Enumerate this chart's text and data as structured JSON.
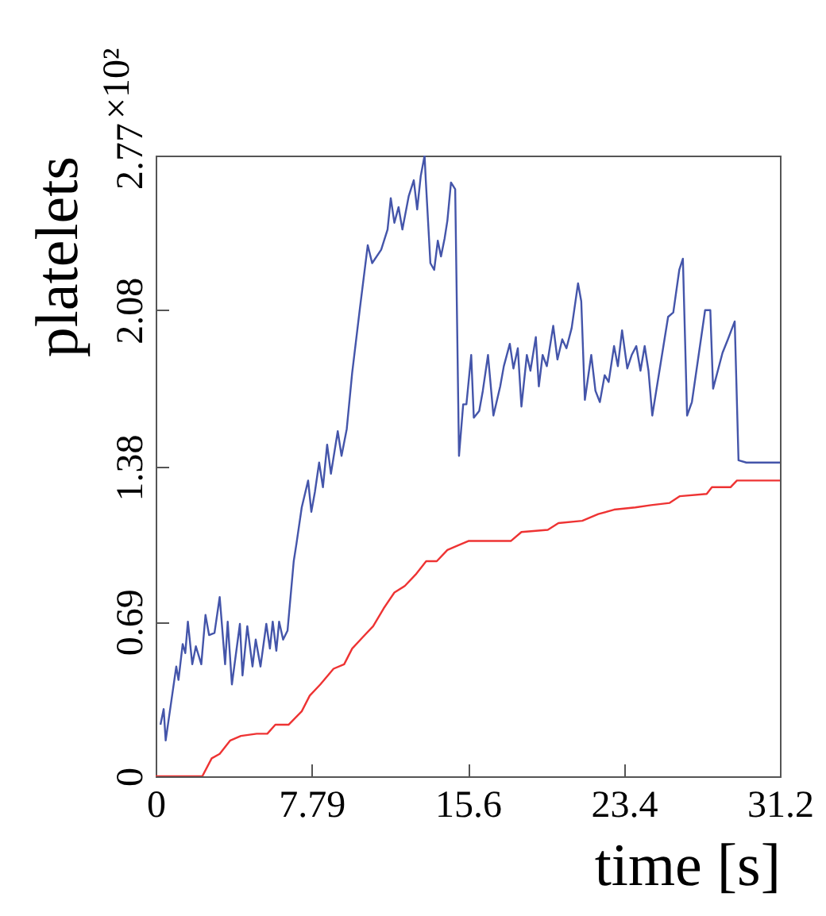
{
  "chart_data": {
    "type": "line",
    "xlabel": "time [s]",
    "ylabel": "platelets",
    "xlim": [
      0,
      31.2
    ],
    "xticks": [
      0,
      7.79,
      15.6,
      23.4,
      31.2
    ],
    "ylim": [
      0,
      2.77
    ],
    "yticks": [
      0,
      0.69,
      1.38,
      2.08,
      2.77
    ],
    "annotations": [
      "×10²"
    ],
    "grid": false,
    "series": [
      {
        "color": "#4455aa",
        "x": [
          0.24,
          0.4,
          0.5,
          1.03,
          1.14,
          1.35,
          1.48,
          1.61,
          1.83,
          2.01,
          2.28,
          2.49,
          2.67,
          2.94,
          3.2,
          3.47,
          3.6,
          3.81,
          4.21,
          4.34,
          4.58,
          4.84,
          5.0,
          5.24,
          5.53,
          5.71,
          5.85,
          6.03,
          6.17,
          6.37,
          6.59,
          6.9,
          7.04,
          7.3,
          7.62,
          7.78,
          7.96,
          8.17,
          8.36,
          8.57,
          8.76,
          9.1,
          9.29,
          9.55,
          9.82,
          10.21,
          10.6,
          10.82,
          11.27,
          11.59,
          11.75,
          11.93,
          12.14,
          12.33,
          12.65,
          12.9,
          13.07,
          13.25,
          13.44,
          13.5,
          13.73,
          13.92,
          14.1,
          14.26,
          14.44,
          14.58,
          14.76,
          14.97,
          15.16,
          15.37,
          15.53,
          15.77,
          15.9,
          16.17,
          16.35,
          16.61,
          16.88,
          17.22,
          17.4,
          17.7,
          17.88,
          18.1,
          18.28,
          18.55,
          18.73,
          19.0,
          19.15,
          19.34,
          19.55,
          19.87,
          20.08,
          20.32,
          20.53,
          20.79,
          21.11,
          21.27,
          21.45,
          21.77,
          21.98,
          22.2,
          22.44,
          22.64,
          22.91,
          23.1,
          23.31,
          23.57,
          23.79,
          24.02,
          24.23,
          24.44,
          24.63,
          24.82,
          25.61,
          25.87,
          26.17,
          26.35,
          26.56,
          26.8,
          27.46,
          27.72,
          27.86,
          28.33,
          28.6,
          28.94,
          29.13,
          29.52,
          30.0,
          31.2
        ],
        "values": [
          0.23,
          0.3,
          0.16,
          0.49,
          0.43,
          0.59,
          0.55,
          0.69,
          0.5,
          0.58,
          0.5,
          0.72,
          0.63,
          0.64,
          0.8,
          0.5,
          0.69,
          0.41,
          0.68,
          0.45,
          0.67,
          0.49,
          0.61,
          0.49,
          0.68,
          0.57,
          0.69,
          0.56,
          0.69,
          0.61,
          0.65,
          0.96,
          1.04,
          1.2,
          1.32,
          1.18,
          1.27,
          1.4,
          1.29,
          1.48,
          1.35,
          1.54,
          1.43,
          1.55,
          1.8,
          2.09,
          2.37,
          2.29,
          2.35,
          2.44,
          2.58,
          2.47,
          2.54,
          2.44,
          2.59,
          2.66,
          2.53,
          2.68,
          2.77,
          2.66,
          2.29,
          2.26,
          2.39,
          2.32,
          2.4,
          2.48,
          2.65,
          2.62,
          1.43,
          1.66,
          1.66,
          1.88,
          1.6,
          1.63,
          1.72,
          1.88,
          1.61,
          1.74,
          1.83,
          1.93,
          1.82,
          1.91,
          1.65,
          1.88,
          1.81,
          1.96,
          1.74,
          1.88,
          1.83,
          2.01,
          1.86,
          1.95,
          1.91,
          2.0,
          2.2,
          2.12,
          1.68,
          1.88,
          1.72,
          1.67,
          1.79,
          1.76,
          1.92,
          1.83,
          1.99,
          1.82,
          1.88,
          1.92,
          1.81,
          1.92,
          1.81,
          1.61,
          2.05,
          2.07,
          2.26,
          2.31,
          1.61,
          1.67,
          2.08,
          2.08,
          1.73,
          1.89,
          1.95,
          2.03,
          1.41,
          1.4,
          1.4,
          1.4
        ]
      },
      {
        "color": "#ee3333",
        "x": [
          0,
          2.33,
          2.8,
          3.2,
          3.73,
          4.26,
          5.05,
          5.58,
          5.98,
          6.64,
          7.3,
          7.7,
          8.23,
          8.89,
          9.42,
          9.82,
          10.34,
          10.87,
          11.4,
          11.93,
          12.46,
          12.99,
          13.52,
          14.05,
          14.58,
          15.11,
          15.63,
          17.75,
          18.28,
          19.6,
          20.13,
          21.32,
          22.12,
          22.91,
          23.97,
          24.76,
          25.69,
          26.2,
          27.54,
          27.8,
          28.73,
          29.05,
          31.2
        ],
        "values": [
          0,
          0,
          0.08,
          0.1,
          0.16,
          0.18,
          0.19,
          0.19,
          0.23,
          0.23,
          0.29,
          0.36,
          0.41,
          0.48,
          0.5,
          0.57,
          0.62,
          0.67,
          0.75,
          0.82,
          0.85,
          0.9,
          0.96,
          0.96,
          1.01,
          1.03,
          1.05,
          1.05,
          1.09,
          1.1,
          1.13,
          1.14,
          1.17,
          1.19,
          1.2,
          1.21,
          1.22,
          1.25,
          1.26,
          1.29,
          1.29,
          1.32,
          1.32
        ]
      }
    ]
  }
}
